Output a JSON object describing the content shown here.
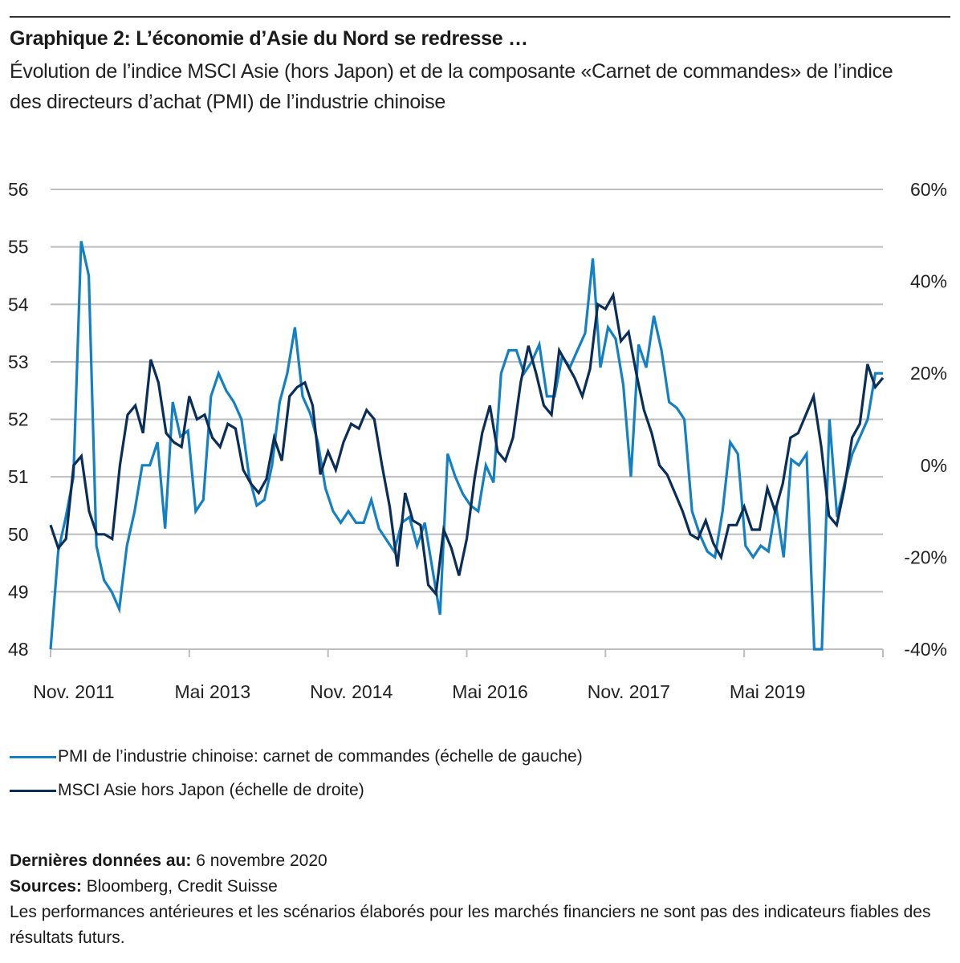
{
  "title": "Graphique 2: L’économie d’Asie du Nord se redresse …",
  "subtitle": "Évolution de l’indice MSCI Asie (hors Japon) et de la composante «Carnet de commandes» de l’indice des directeurs d’achat (PMI) de l’industrie chinoise",
  "legend": {
    "items": [
      {
        "label": "PMI de l’industrie chinoise: carnet de commandes (échelle de gauche)",
        "color": "#1380c4"
      },
      {
        "label": "MSCI Asie hors Japon (échelle de droite)",
        "color": "#0b2e59"
      }
    ]
  },
  "footer": {
    "last_data_label": "Dernières données au:",
    "last_data_value": "6 novembre 2020",
    "sources_label": "Sources:",
    "sources_value": "Bloomberg, Credit Suisse",
    "disclaimer": "Les performances antérieures et les scénarios élaborés pour les marchés financiers ne sont pas des indicateurs fiables des résultats futurs."
  },
  "chart_data": {
    "type": "line",
    "title": "Graphique 2: L’économie d’Asie du Nord se redresse …",
    "xlabel": "",
    "ylabel_left": "",
    "ylabel_right": "",
    "x_start": "Nov. 2011",
    "x_frequency": "monthly",
    "x_tick_labels": [
      "Nov. 2011",
      "Mai 2013",
      "Nov. 2014",
      "Mai 2016",
      "Nov. 2017",
      "Mai 2019"
    ],
    "x_tick_months": [
      0,
      18,
      36,
      54,
      72,
      90
    ],
    "x_total_months": 108,
    "y_left": {
      "ticks": [
        "56",
        "55",
        "54",
        "53",
        "52",
        "51",
        "50",
        "49",
        "48"
      ],
      "range": [
        48,
        56
      ]
    },
    "y_right": {
      "ticks": [
        "60%",
        "40%",
        "20%",
        "0%",
        "-20%",
        "-40%"
      ],
      "range": [
        -40,
        60
      ]
    },
    "grid": true,
    "legend_position": "bottom-left",
    "series": [
      {
        "name": "PMI de l’industrie chinoise: carnet de commandes (échelle de gauche)",
        "axis": "left",
        "color": "#1380c4",
        "values": [
          48.0,
          49.7,
          50.3,
          51.0,
          55.1,
          54.5,
          49.8,
          49.2,
          49.0,
          48.7,
          49.8,
          50.4,
          51.2,
          51.2,
          51.6,
          50.1,
          52.3,
          51.7,
          51.8,
          50.4,
          50.6,
          52.4,
          52.8,
          52.5,
          52.3,
          52.0,
          51.0,
          50.5,
          50.6,
          51.2,
          52.3,
          52.8,
          53.6,
          52.4,
          52.1,
          51.6,
          50.8,
          50.4,
          50.2,
          50.4,
          50.2,
          50.2,
          50.6,
          50.1,
          49.9,
          49.7,
          50.2,
          50.3,
          49.8,
          50.2,
          49.4,
          48.6,
          51.4,
          51.0,
          50.7,
          50.5,
          50.4,
          51.2,
          50.9,
          52.8,
          53.2,
          53.2,
          52.8,
          53.0,
          53.3,
          52.4,
          52.4,
          53.1,
          52.9,
          53.2,
          53.5,
          54.8,
          52.9,
          53.6,
          53.4,
          52.6,
          51.0,
          53.3,
          52.9,
          53.8,
          53.2,
          52.3,
          52.2,
          52.0,
          50.4,
          50.0,
          49.7,
          49.6,
          50.4,
          51.6,
          51.4,
          49.8,
          49.6,
          49.8,
          49.7,
          50.5,
          49.6,
          51.3,
          51.2,
          51.4,
          40.0,
          40.0,
          52.0,
          50.3,
          50.9,
          51.4,
          51.7,
          52.0,
          52.8,
          52.8
        ]
      },
      {
        "name": "MSCI Asie hors Japon (échelle de droite)",
        "axis": "right",
        "color": "#0b2e59",
        "values": [
          -13,
          -18,
          -16,
          0,
          2,
          -10,
          -15,
          -15,
          -16,
          0,
          11,
          13,
          7,
          23,
          18,
          7,
          5,
          4,
          15,
          10,
          11,
          6,
          4,
          9,
          8,
          -1,
          -4,
          -6,
          -3,
          6,
          1,
          15,
          17,
          18,
          13,
          -2,
          3,
          -1,
          5,
          9,
          8,
          12,
          10,
          0,
          -9,
          -22,
          -6,
          -12,
          -13,
          -26,
          -28,
          -14,
          -18,
          -24,
          -16,
          -3,
          7,
          13,
          3,
          1,
          6,
          18,
          26,
          20,
          13,
          11,
          25,
          22,
          19,
          15,
          21,
          35,
          34,
          37,
          27,
          29,
          20,
          12,
          7,
          0,
          -2,
          -6,
          -10,
          -15,
          -16,
          -12,
          -17,
          -20,
          -13,
          -13,
          -9,
          -14,
          -14,
          -5,
          -10,
          -4,
          6,
          7,
          11,
          15,
          4,
          -11,
          -13,
          -5,
          6,
          9,
          22,
          17,
          19
        ]
      }
    ]
  }
}
